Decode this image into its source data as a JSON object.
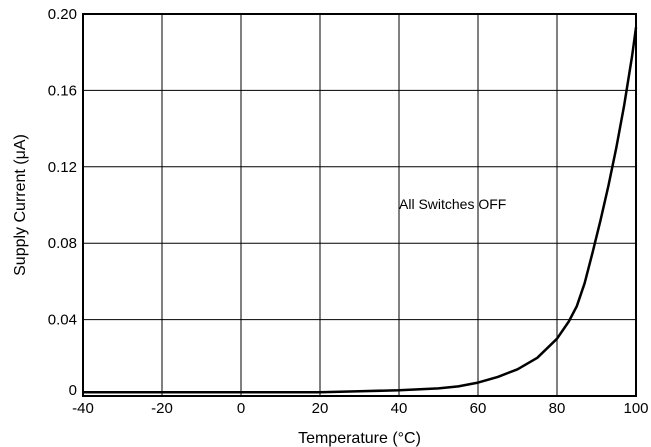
{
  "chart_data": {
    "type": "line",
    "title": "",
    "xlabel": "Temperature (°C)",
    "ylabel": "Supply Current (μA)",
    "xlim": [
      -40,
      100
    ],
    "ylim": [
      0,
      0.2
    ],
    "x_ticks": [
      -40,
      -20,
      0,
      20,
      40,
      60,
      80,
      100
    ],
    "x_tick_labels": [
      "-40",
      "-20",
      "0",
      "20",
      "40",
      "60",
      "80",
      "100"
    ],
    "y_ticks": [
      0,
      0.04,
      0.08,
      0.12,
      0.16,
      0.2
    ],
    "y_tick_labels": [
      "0",
      "0.04",
      "0.08",
      "0.12",
      "0.16",
      "0.20"
    ],
    "grid": true,
    "annotation": "All Switches OFF",
    "series": [
      {
        "color": "#000000",
        "x": [
          -40,
          -20,
          0,
          20,
          30,
          40,
          50,
          55,
          60,
          65,
          70,
          75,
          80,
          83,
          85,
          87,
          89,
          91,
          93,
          95,
          97,
          99,
          100
        ],
        "y": [
          0.002,
          0.002,
          0.002,
          0.002,
          0.0025,
          0.003,
          0.004,
          0.005,
          0.007,
          0.01,
          0.014,
          0.02,
          0.03,
          0.039,
          0.047,
          0.059,
          0.075,
          0.092,
          0.11,
          0.13,
          0.152,
          0.178,
          0.193
        ]
      }
    ],
    "colors": {
      "line": "#000000",
      "grid": "#000000",
      "frame": "#000000",
      "background": "#ffffff"
    }
  }
}
